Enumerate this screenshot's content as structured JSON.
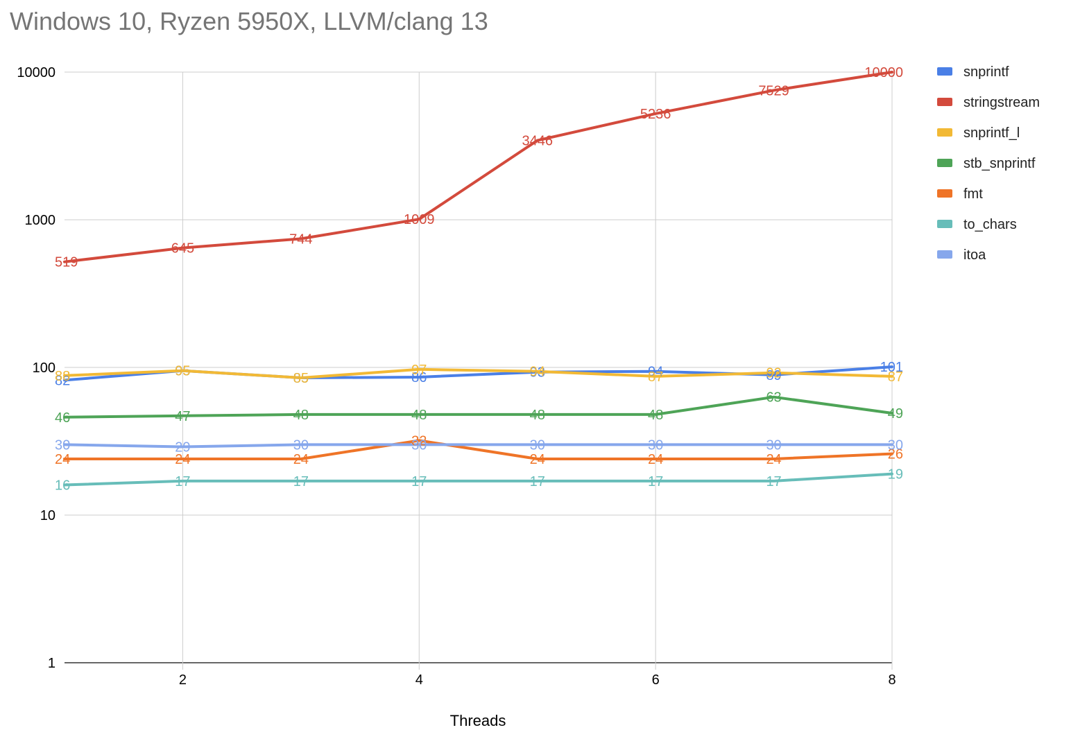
{
  "chart_data": {
    "type": "line",
    "title": "Windows 10, Ryzen 5950X, LLVM/clang 13",
    "xlabel": "Threads",
    "ylabel": "",
    "yscale": "log",
    "ylim": [
      1,
      10000
    ],
    "xlim": [
      1,
      8
    ],
    "x": [
      1,
      2,
      3,
      4,
      5,
      6,
      7,
      8
    ],
    "x_ticks": [
      2,
      4,
      6,
      8
    ],
    "y_ticks": [
      1,
      10,
      100,
      1000,
      10000
    ],
    "grid": true,
    "legend_position": "right",
    "series": [
      {
        "name": "snprintf",
        "color": "#4a7fe6",
        "values": [
          82,
          95,
          85,
          86,
          93,
          94,
          89,
          101
        ]
      },
      {
        "name": "stringstream",
        "color": "#d34a3c",
        "values": [
          519,
          645,
          744,
          1009,
          3446,
          5236,
          7529,
          10000
        ]
      },
      {
        "name": "snprintf_l",
        "color": "#f2b935",
        "values": [
          88,
          95,
          85,
          97,
          94,
          87,
          92,
          87
        ]
      },
      {
        "name": "stb_snprintf",
        "color": "#4ea457",
        "values": [
          46,
          47,
          48,
          48,
          48,
          48,
          63,
          49
        ]
      },
      {
        "name": "fmt",
        "color": "#ef7427",
        "values": [
          24,
          24,
          24,
          32,
          24,
          24,
          24,
          26
        ]
      },
      {
        "name": "to_chars",
        "color": "#67bdb9",
        "values": [
          16,
          17,
          17,
          17,
          17,
          17,
          17,
          19
        ]
      },
      {
        "name": "itoa",
        "color": "#86a7ec",
        "values": [
          30,
          29,
          30,
          30,
          30,
          30,
          30,
          30
        ]
      }
    ]
  }
}
